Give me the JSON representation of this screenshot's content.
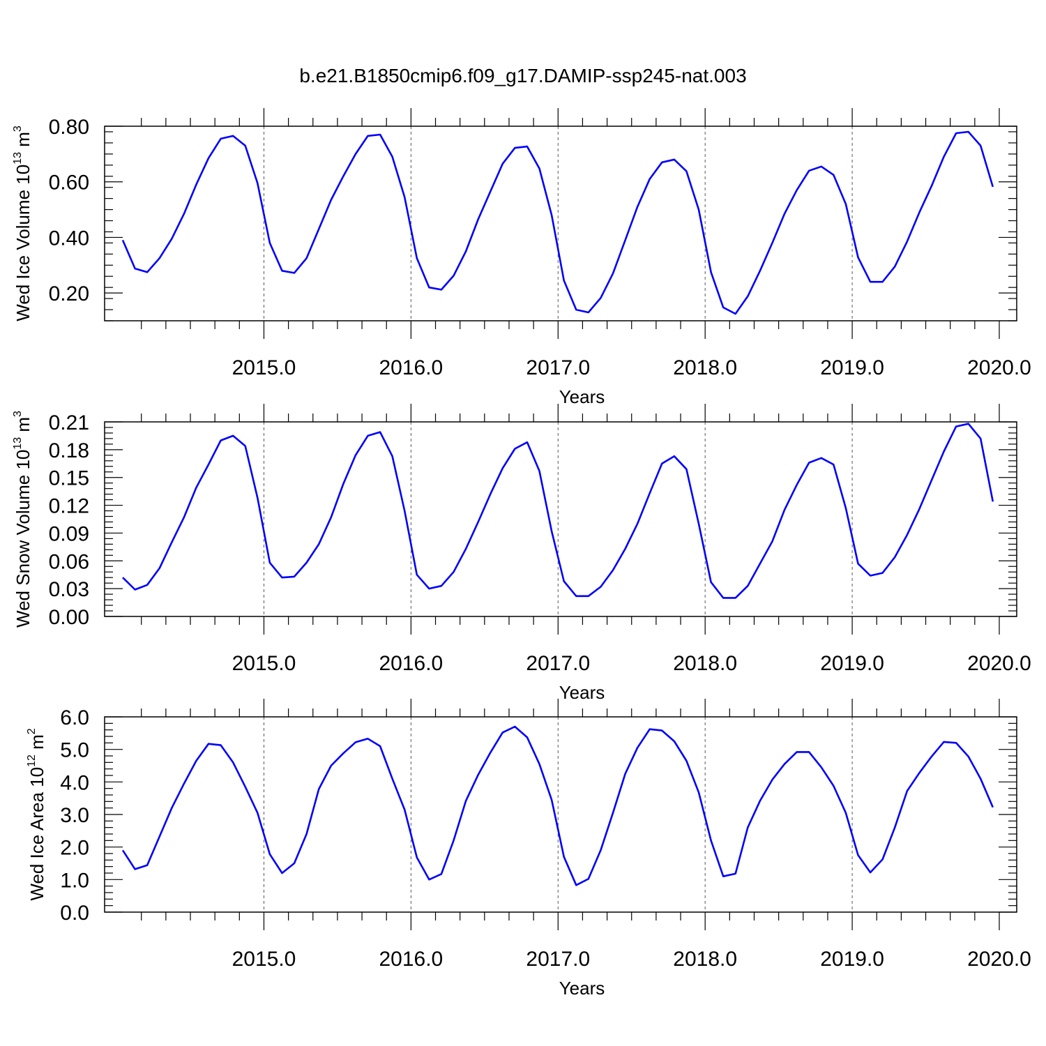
{
  "figure_title": "b.e21.B1850cmip6.f09_g17.DAMIP-ssp245-nat.003",
  "colors": {
    "series": "#0000ff",
    "frame": "#000000",
    "grid": "#555555"
  },
  "chart_data": [
    {
      "type": "line",
      "xlabel": "Years",
      "ylabel_main": "Wed Ice Volume 10",
      "ylabel_exp": "13",
      "ylabel_unit": " m",
      "ylabel_unit_exp": "3",
      "xlim": [
        2014.04,
        2020.0
      ],
      "ylim": [
        0.1,
        0.8
      ],
      "xticks": [
        2015.0,
        2016.0,
        2017.0,
        2018.0,
        2019.0,
        2020.0
      ],
      "xtick_labels": [
        "2015.0",
        "2016.0",
        "2017.0",
        "2018.0",
        "2019.0",
        "2020.0"
      ],
      "yticks": [
        0.2,
        0.4,
        0.6,
        0.8
      ],
      "ytick_labels": [
        "0.20",
        "0.40",
        "0.60",
        "0.80"
      ],
      "grid": "vertical dashed at years",
      "series": [
        {
          "x_start": 2014.04,
          "x_step": 0.08333,
          "values": [
            0.39,
            0.288,
            0.275,
            0.325,
            0.395,
            0.485,
            0.59,
            0.685,
            0.755,
            0.765,
            0.73,
            0.595,
            0.38,
            0.28,
            0.272,
            0.325,
            0.43,
            0.535,
            0.62,
            0.7,
            0.765,
            0.77,
            0.69,
            0.545,
            0.325,
            0.22,
            0.212,
            0.262,
            0.35,
            0.465,
            0.565,
            0.665,
            0.722,
            0.727,
            0.648,
            0.48,
            0.245,
            0.14,
            0.13,
            0.182,
            0.27,
            0.39,
            0.51,
            0.61,
            0.67,
            0.68,
            0.638,
            0.5,
            0.275,
            0.148,
            0.125,
            0.188,
            0.28,
            0.38,
            0.485,
            0.57,
            0.64,
            0.655,
            0.625,
            0.52,
            0.328,
            0.24,
            0.24,
            0.295,
            0.385,
            0.49,
            0.585,
            0.69,
            0.775,
            0.78,
            0.73,
            0.582
          ]
        }
      ]
    },
    {
      "type": "line",
      "xlabel": "Years",
      "ylabel_main": "Wed Snow Volume 10",
      "ylabel_exp": "13",
      "ylabel_unit": " m",
      "ylabel_unit_exp": "3",
      "xlim": [
        2014.04,
        2020.0
      ],
      "ylim": [
        0.0,
        0.21
      ],
      "xticks": [
        2015.0,
        2016.0,
        2017.0,
        2018.0,
        2019.0,
        2020.0
      ],
      "xtick_labels": [
        "2015.0",
        "2016.0",
        "2017.0",
        "2018.0",
        "2019.0",
        "2020.0"
      ],
      "yticks": [
        0.0,
        0.03,
        0.06,
        0.09,
        0.12,
        0.15,
        0.18,
        0.21
      ],
      "ytick_labels": [
        "0.00",
        "0.03",
        "0.06",
        "0.09",
        "0.12",
        "0.15",
        "0.18",
        "0.21"
      ],
      "grid": "vertical dashed at years",
      "series": [
        {
          "x_start": 2014.04,
          "x_step": 0.08333,
          "values": [
            0.042,
            0.029,
            0.034,
            0.052,
            0.08,
            0.107,
            0.139,
            0.164,
            0.19,
            0.195,
            0.184,
            0.128,
            0.058,
            0.042,
            0.043,
            0.058,
            0.078,
            0.107,
            0.143,
            0.174,
            0.195,
            0.199,
            0.173,
            0.114,
            0.045,
            0.03,
            0.033,
            0.048,
            0.073,
            0.102,
            0.132,
            0.16,
            0.181,
            0.188,
            0.157,
            0.092,
            0.038,
            0.022,
            0.022,
            0.032,
            0.05,
            0.073,
            0.1,
            0.133,
            0.165,
            0.173,
            0.159,
            0.1,
            0.037,
            0.02,
            0.02,
            0.033,
            0.057,
            0.081,
            0.115,
            0.142,
            0.166,
            0.171,
            0.164,
            0.117,
            0.057,
            0.044,
            0.047,
            0.064,
            0.088,
            0.116,
            0.147,
            0.178,
            0.205,
            0.208,
            0.192,
            0.124
          ]
        }
      ]
    },
    {
      "type": "line",
      "xlabel": "Years",
      "ylabel_main": "Wed Ice Area 10",
      "ylabel_exp": "12",
      "ylabel_unit": " m",
      "ylabel_unit_exp": "2",
      "xlim": [
        2014.04,
        2020.0
      ],
      "ylim": [
        0.0,
        6.0
      ],
      "xticks": [
        2015.0,
        2016.0,
        2017.0,
        2018.0,
        2019.0,
        2020.0
      ],
      "xtick_labels": [
        "2015.0",
        "2016.0",
        "2017.0",
        "2018.0",
        "2019.0",
        "2020.0"
      ],
      "yticks": [
        0.0,
        1.0,
        2.0,
        3.0,
        4.0,
        5.0,
        6.0
      ],
      "ytick_labels": [
        "0.0",
        "1.0",
        "2.0",
        "3.0",
        "4.0",
        "5.0",
        "6.0"
      ],
      "grid": "vertical dashed at years",
      "series": [
        {
          "x_start": 2014.04,
          "x_step": 0.08333,
          "values": [
            1.9,
            1.32,
            1.44,
            2.32,
            3.2,
            3.95,
            4.65,
            5.17,
            5.13,
            4.6,
            3.85,
            3.05,
            1.78,
            1.2,
            1.5,
            2.4,
            3.78,
            4.5,
            4.88,
            5.22,
            5.33,
            5.1,
            4.1,
            3.15,
            1.68,
            1.0,
            1.17,
            2.2,
            3.42,
            4.22,
            4.9,
            5.52,
            5.7,
            5.37,
            4.55,
            3.45,
            1.7,
            0.83,
            1.02,
            1.9,
            3.05,
            4.25,
            5.05,
            5.62,
            5.58,
            5.25,
            4.65,
            3.68,
            2.2,
            1.1,
            1.18,
            2.6,
            3.42,
            4.07,
            4.55,
            4.92,
            4.92,
            4.45,
            3.88,
            3.05,
            1.75,
            1.22,
            1.62,
            2.6,
            3.72,
            4.28,
            4.78,
            5.23,
            5.2,
            4.78,
            4.1,
            3.22
          ]
        }
      ]
    }
  ]
}
